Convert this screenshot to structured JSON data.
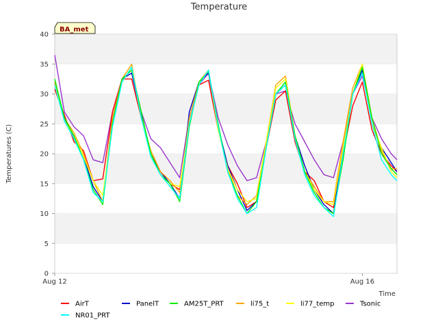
{
  "chart_data": {
    "type": "line",
    "title": "Temperature",
    "xlabel": "Time",
    "ylabel": "Temperatures (C)",
    "station_badge": "BA_met",
    "ylim": [
      0,
      40
    ],
    "yticks": [
      0,
      5,
      10,
      15,
      20,
      25,
      30,
      35,
      40
    ],
    "xlim_days": [
      12,
      16.45
    ],
    "xticks": [
      {
        "day": 12,
        "label": "Aug 12"
      },
      {
        "day": 16,
        "label": "Aug 16"
      }
    ],
    "grid": "horizontal bands",
    "legend_position": "bottom",
    "x_days": [
      12.0,
      12.125,
      12.25,
      12.375,
      12.5,
      12.625,
      12.75,
      12.875,
      13.0,
      13.125,
      13.25,
      13.375,
      13.5,
      13.625,
      13.75,
      13.875,
      14.0,
      14.125,
      14.25,
      14.375,
      14.5,
      14.625,
      14.75,
      14.875,
      15.0,
      15.125,
      15.25,
      15.375,
      15.5,
      15.625,
      15.75,
      15.875,
      16.0,
      16.125,
      16.25,
      16.375,
      16.45
    ],
    "series": [
      {
        "name": "AirT",
        "color": "#ff0000",
        "values": [
          30.8,
          26.5,
          22.0,
          20.5,
          15.5,
          15.8,
          27.0,
          32.5,
          32.5,
          26.0,
          20.0,
          17.0,
          15.0,
          14.0,
          25.0,
          31.5,
          32.3,
          24.0,
          18.0,
          15.0,
          11.0,
          12.0,
          21.0,
          29.0,
          30.5,
          22.0,
          17.0,
          15.5,
          12.0,
          11.0,
          20.0,
          28.0,
          32.0,
          24.0,
          20.0,
          18.0,
          17.0
        ]
      },
      {
        "name": "PanelT",
        "color": "#0000cc",
        "values": [
          32.0,
          26.0,
          22.5,
          19.5,
          14.5,
          12.0,
          26.0,
          32.5,
          33.5,
          26.5,
          20.0,
          17.0,
          15.0,
          12.5,
          27.0,
          32.0,
          33.5,
          24.5,
          18.0,
          14.0,
          10.5,
          12.0,
          22.0,
          30.0,
          31.5,
          23.0,
          18.0,
          14.0,
          11.5,
          10.0,
          21.0,
          30.0,
          34.0,
          25.0,
          21.0,
          18.5,
          17.0
        ]
      },
      {
        "name": "AM25T_PRT",
        "color": "#00ee00",
        "values": [
          32.5,
          26.0,
          23.0,
          19.0,
          14.0,
          11.5,
          25.0,
          32.5,
          34.0,
          27.0,
          20.0,
          16.5,
          15.0,
          12.0,
          24.5,
          32.0,
          33.8,
          25.0,
          17.0,
          13.0,
          10.0,
          12.0,
          21.0,
          30.0,
          32.0,
          23.0,
          17.0,
          13.5,
          11.0,
          10.0,
          19.0,
          30.0,
          34.5,
          26.0,
          20.0,
          17.5,
          16.5
        ]
      },
      {
        "name": "li75_t",
        "color": "#ffa500",
        "values": [
          32.0,
          26.0,
          23.5,
          20.0,
          15.5,
          12.0,
          26.0,
          32.5,
          35.0,
          26.0,
          20.5,
          17.0,
          15.5,
          13.5,
          26.0,
          32.0,
          34.0,
          24.0,
          17.5,
          13.0,
          11.5,
          13.0,
          22.0,
          31.5,
          33.0,
          23.0,
          17.0,
          14.5,
          12.0,
          12.0,
          22.0,
          31.0,
          35.0,
          26.0,
          20.5,
          17.5,
          17.5
        ]
      },
      {
        "name": "li77_temp",
        "color": "#ffff00",
        "values": [
          31.5,
          25.5,
          23.0,
          19.5,
          15.5,
          13.0,
          25.0,
          32.0,
          34.5,
          26.0,
          20.0,
          16.5,
          15.0,
          14.5,
          25.0,
          31.5,
          34.0,
          24.0,
          17.5,
          14.0,
          12.0,
          12.5,
          22.0,
          31.0,
          32.5,
          23.0,
          17.0,
          14.0,
          12.0,
          11.5,
          21.0,
          30.0,
          35.0,
          25.0,
          21.0,
          17.0,
          16.0
        ]
      },
      {
        "name": "Tsonic",
        "color": "#9933cc",
        "values": [
          36.5,
          27.0,
          24.5,
          23.0,
          19.0,
          18.5,
          27.0,
          32.5,
          34.0,
          27.0,
          22.5,
          21.0,
          18.5,
          16.0,
          26.0,
          31.5,
          33.5,
          26.0,
          21.5,
          18.0,
          15.5,
          16.0,
          22.0,
          30.0,
          30.5,
          25.0,
          22.0,
          19.0,
          16.5,
          16.0,
          22.0,
          30.0,
          33.0,
          26.0,
          22.5,
          20.0,
          19.0
        ]
      },
      {
        "name": "NR01_PRT",
        "color": "#00ffff",
        "values": [
          31.5,
          25.5,
          22.5,
          19.0,
          13.5,
          12.0,
          24.5,
          32.0,
          34.5,
          26.0,
          19.5,
          16.5,
          14.5,
          12.5,
          25.0,
          31.5,
          34.0,
          24.5,
          17.0,
          12.5,
          10.0,
          11.0,
          21.0,
          30.0,
          31.5,
          22.5,
          16.5,
          13.0,
          11.0,
          9.5,
          20.0,
          30.0,
          33.5,
          25.0,
          19.0,
          16.5,
          15.5
        ]
      }
    ]
  }
}
